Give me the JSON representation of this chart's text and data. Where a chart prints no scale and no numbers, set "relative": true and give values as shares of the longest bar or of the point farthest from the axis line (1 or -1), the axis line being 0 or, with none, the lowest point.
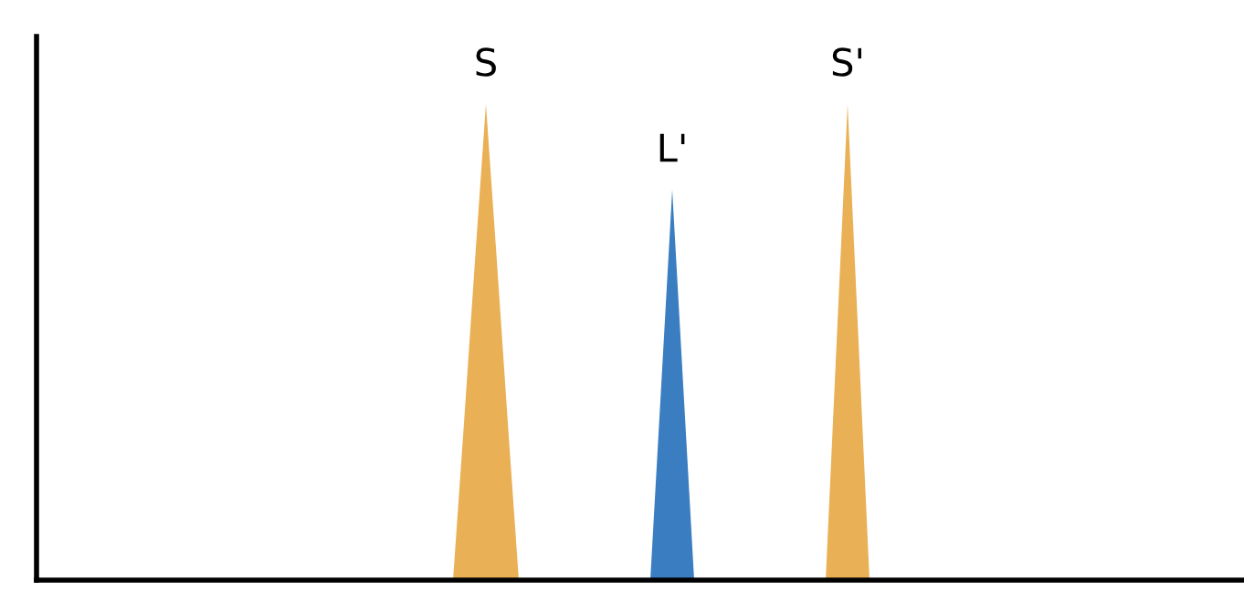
{
  "chart_data": {
    "type": "area",
    "relative": true,
    "categories": [
      null,
      null,
      null,
      null,
      null,
      null,
      null,
      null,
      null,
      null,
      null,
      null,
      null,
      null,
      null,
      null,
      null,
      null,
      null,
      null,
      null,
      null,
      null,
      null,
      null,
      null,
      null,
      null,
      null,
      null,
      null,
      null,
      null,
      null,
      null,
      null,
      null,
      null,
      null,
      null,
      null,
      null,
      null,
      null,
      null,
      null,
      null,
      null,
      null,
      null,
      null,
      null,
      null,
      null,
      null,
      null,
      null,
      null,
      null,
      null,
      null,
      null,
      null,
      null,
      null,
      null,
      null,
      null,
      null,
      null,
      null,
      null,
      null,
      null,
      null,
      null,
      null,
      null,
      null,
      null,
      null,
      null,
      null,
      null,
      null,
      null,
      null,
      null,
      null,
      null,
      null,
      null,
      null,
      null,
      null,
      null,
      null,
      null,
      null,
      null,
      null,
      null,
      null,
      null,
      null,
      null,
      null,
      null,
      null,
      null,
      null
    ],
    "series": [
      {
        "name": "S",
        "color": "#e9b055",
        "values": [
          null,
          null,
          null,
          null,
          null,
          null,
          null,
          null,
          null,
          null,
          null,
          null,
          null,
          null,
          null,
          null,
          null,
          null,
          null,
          null,
          null,
          null,
          null,
          null,
          null,
          null,
          null,
          null,
          null,
          null,
          null,
          null,
          null,
          null,
          null,
          null,
          null,
          null,
          0,
          0.33,
          0.67,
          1,
          0.67,
          0.33,
          0,
          null,
          null,
          null,
          null,
          null,
          null,
          null,
          null,
          null,
          null,
          null,
          null,
          null,
          null,
          null,
          null,
          null,
          null,
          null,
          null,
          null,
          null,
          null,
          null,
          null,
          null,
          null,
          null,
          null,
          null,
          null,
          null,
          null,
          null,
          null,
          null,
          null,
          null,
          null,
          null,
          null,
          null,
          null,
          null,
          null,
          null,
          null,
          null,
          null,
          null,
          null,
          null,
          null,
          null,
          null,
          null,
          null,
          null,
          null,
          null,
          null,
          null,
          null,
          null,
          null,
          null
        ]
      },
      {
        "name": "L'",
        "color": "#3a7dc0",
        "values": [
          null,
          null,
          null,
          null,
          null,
          null,
          null,
          null,
          null,
          null,
          null,
          null,
          null,
          null,
          null,
          null,
          null,
          null,
          null,
          null,
          null,
          null,
          null,
          null,
          null,
          null,
          null,
          null,
          null,
          null,
          null,
          null,
          null,
          null,
          null,
          null,
          null,
          null,
          null,
          null,
          null,
          null,
          null,
          null,
          null,
          null,
          null,
          null,
          null,
          null,
          null,
          null,
          null,
          null,
          null,
          null,
          0,
          0.41,
          0.82,
          0.41,
          0,
          null,
          null,
          null,
          null,
          null,
          null,
          null,
          null,
          null,
          null,
          null,
          null,
          null,
          null,
          null,
          null,
          null,
          null,
          null,
          null,
          null,
          null,
          null,
          null,
          null,
          null,
          null,
          null,
          null,
          null,
          null,
          null,
          null,
          null,
          null,
          null,
          null,
          null,
          null,
          null,
          null,
          null,
          null,
          null,
          null,
          null,
          null,
          null,
          null,
          null
        ]
      },
      {
        "name": "S'",
        "color": "#e9b055",
        "values": [
          null,
          null,
          null,
          null,
          null,
          null,
          null,
          null,
          null,
          null,
          null,
          null,
          null,
          null,
          null,
          null,
          null,
          null,
          null,
          null,
          null,
          null,
          null,
          null,
          null,
          null,
          null,
          null,
          null,
          null,
          null,
          null,
          null,
          null,
          null,
          null,
          null,
          null,
          null,
          null,
          null,
          null,
          null,
          null,
          null,
          null,
          null,
          null,
          null,
          null,
          null,
          null,
          null,
          null,
          null,
          null,
          null,
          null,
          null,
          null,
          null,
          null,
          null,
          null,
          null,
          null,
          null,
          null,
          null,
          null,
          null,
          null,
          0,
          0.5,
          1,
          0.5,
          0,
          null,
          null,
          null,
          null,
          null,
          null,
          null,
          null,
          null,
          null,
          null,
          null,
          null,
          null,
          null,
          null,
          null,
          null,
          null,
          null,
          null,
          null,
          null,
          null,
          null,
          null,
          null,
          null,
          null,
          null,
          null,
          null,
          null,
          null
        ]
      }
    ]
  }
}
